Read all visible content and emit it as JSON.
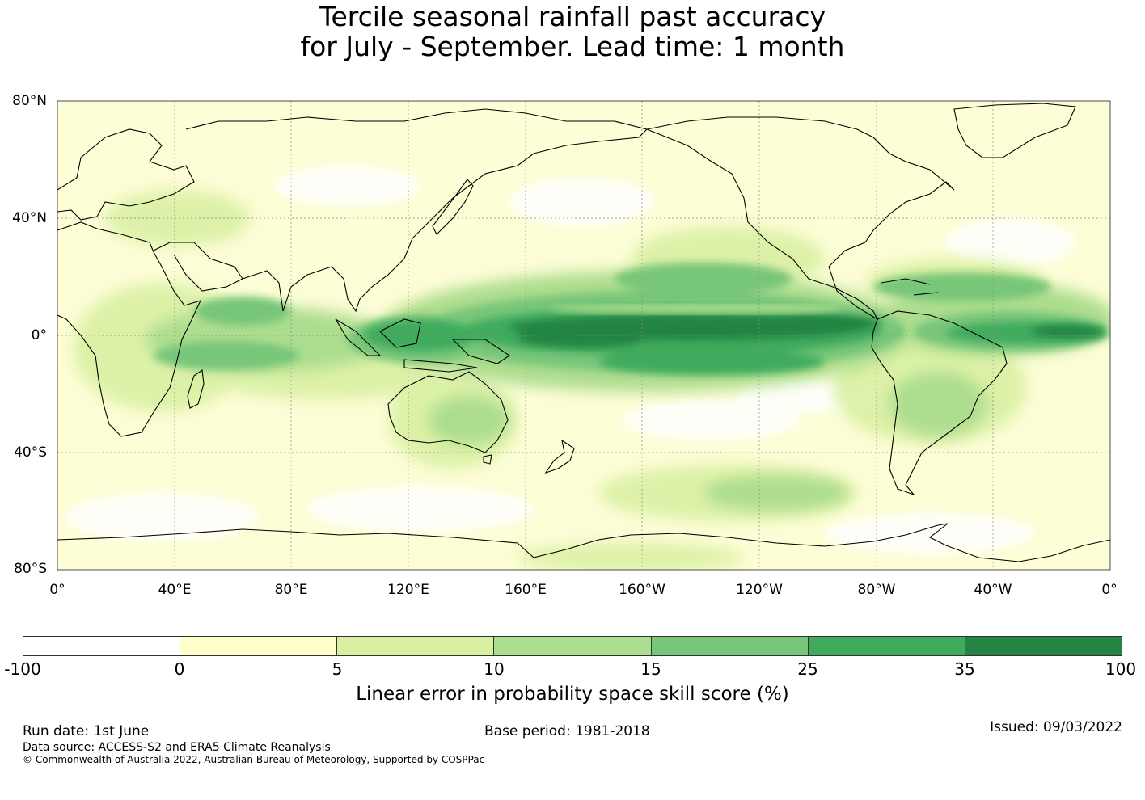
{
  "title": {
    "line1": "Tercile seasonal rainfall past accuracy",
    "line2": "for July - September. Lead time: 1 month"
  },
  "map": {
    "lat_labels": [
      "80°N",
      "40°N",
      "0°",
      "40°S",
      "80°S"
    ],
    "lon_labels": [
      "0°",
      "40°E",
      "80°E",
      "120°E",
      "160°E",
      "160°W",
      "120°W",
      "80°W",
      "40°W",
      "0°"
    ],
    "high_skill_regions": [
      "tropical Pacific",
      "Maritime Continent",
      "tropical Atlantic",
      "Indian Ocean"
    ]
  },
  "colorbar": {
    "label": "Linear error in probability space skill score (%)",
    "ticks": [
      "-100",
      "0",
      "5",
      "10",
      "15",
      "25",
      "35",
      "100"
    ],
    "colors": [
      "#ffffff",
      "#ffffcc",
      "#d9f0a3",
      "#addd8e",
      "#78c679",
      "#41ab5d",
      "#238443"
    ]
  },
  "footer": {
    "run_date": "Run date: 1st June",
    "base_period": "Base period: 1981-2018",
    "issued": "Issued: 09/03/2022",
    "data_source": "Data source: ACCESS-S2 and ERA5 Climate Reanalysis",
    "copyright": "© Commonwealth of Australia 2022, Australian Bureau of Meteorology, Supported by COSPPac"
  }
}
